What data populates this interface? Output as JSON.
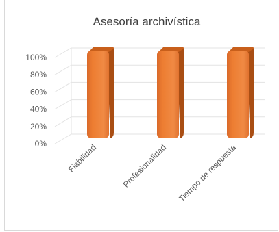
{
  "chart_data": {
    "type": "bar",
    "title": "Asesoría archivística",
    "categories": [
      "Fiabilidad",
      "Profesionalidad",
      "Tiempo de respuesta"
    ],
    "values": [
      100,
      100,
      100
    ],
    "ylim": [
      0,
      100
    ],
    "ytick_labels": [
      "0%",
      "20%",
      "40%",
      "60%",
      "80%",
      "100%"
    ],
    "xlabel": "",
    "ylabel": "",
    "grid": true,
    "legend": "none",
    "bar_color": "#ed7d31",
    "bar_side_color": "#a94e14",
    "bar_top_color": "#c85f1b"
  }
}
